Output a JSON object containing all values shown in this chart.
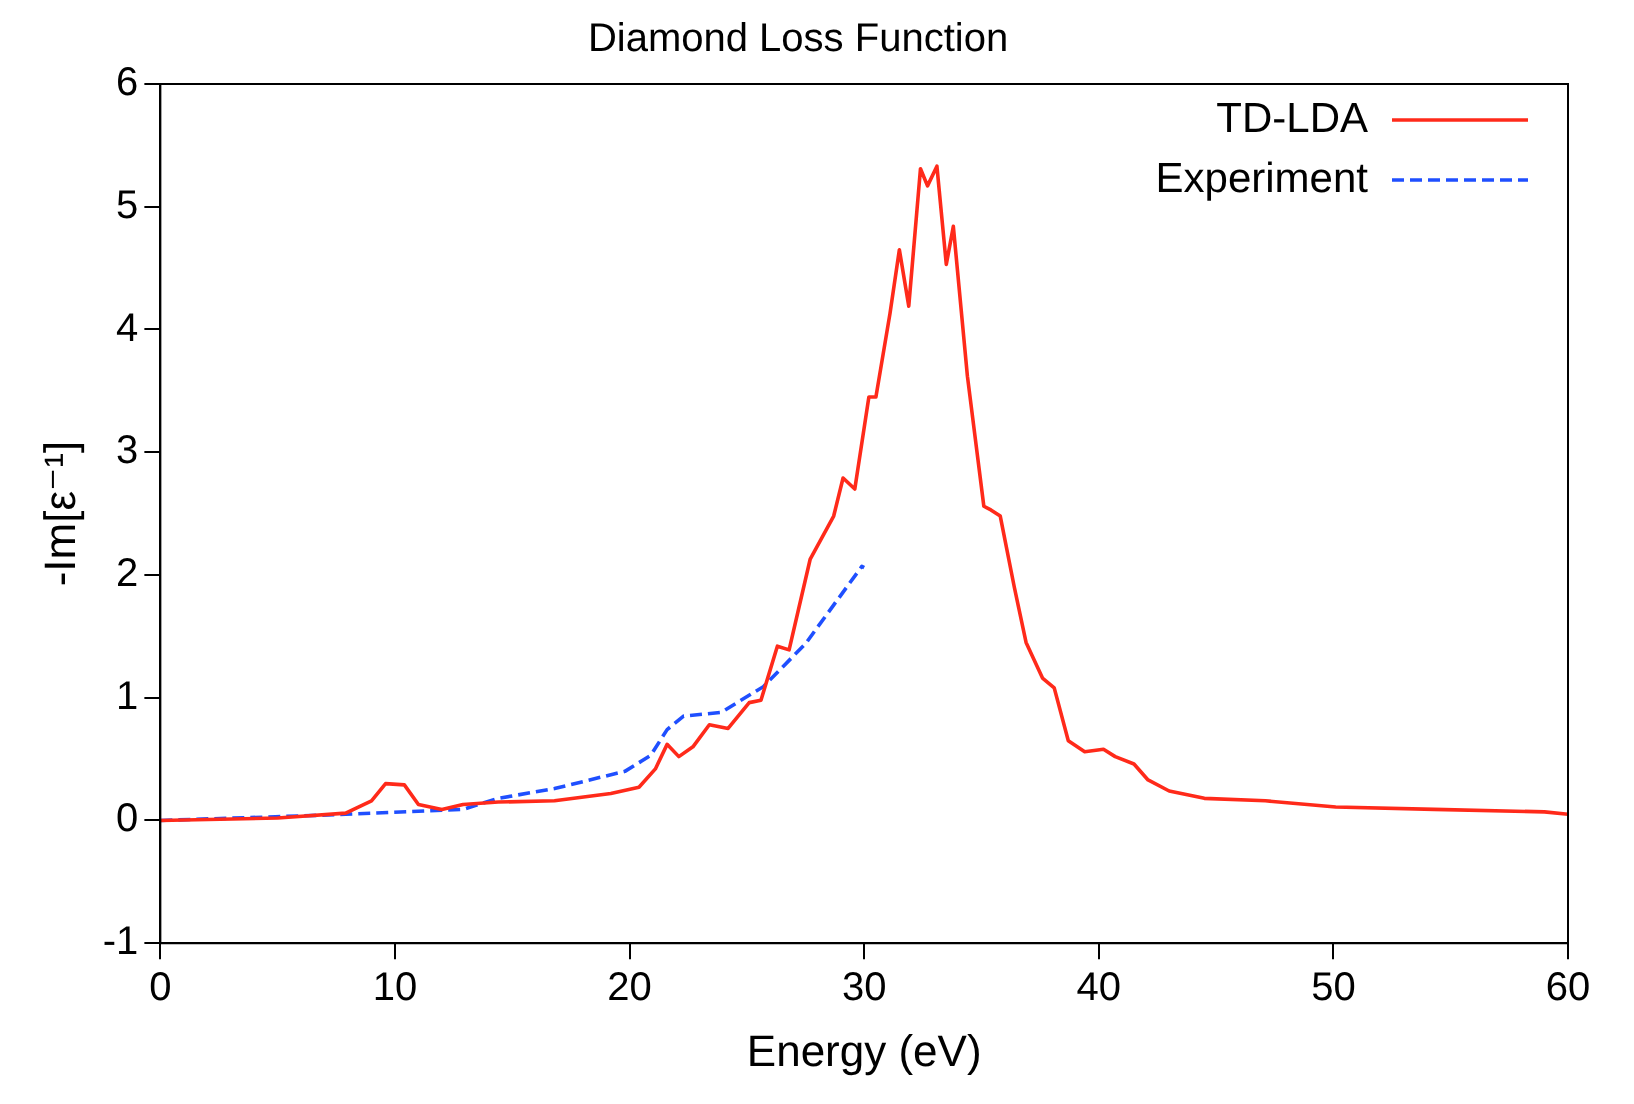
{
  "chart_data": {
    "type": "line",
    "title": "Diamond Loss Function",
    "xlabel": "Energy (eV)",
    "ylabel": "-Im[ε⁻¹]",
    "xlim": [
      0,
      60
    ],
    "xticks": [
      0,
      10,
      20,
      30,
      40,
      50,
      60
    ],
    "ylim": [
      -1,
      6
    ],
    "yticks": [
      -1,
      0,
      1,
      2,
      3,
      4,
      5,
      6
    ],
    "grid": false,
    "legend": "top right",
    "marker": "none",
    "series": [
      {
        "name": "TD-LDA",
        "color": "#ff2a1a",
        "line_style": "solid",
        "x": [
          0,
          5,
          7.9,
          9.0,
          9.6,
          10.4,
          11.0,
          12.0,
          12.9,
          14.4,
          16.8,
          19.2,
          20.4,
          21.1,
          21.6,
          22.1,
          22.7,
          23.4,
          24.2,
          25.1,
          25.6,
          26.3,
          26.8,
          27.7,
          28.7,
          29.1,
          29.6,
          30.2,
          30.5,
          31.1,
          31.5,
          31.9,
          32.4,
          32.7,
          33.1,
          33.5,
          33.8,
          34.4,
          35.1,
          35.4,
          35.8,
          36.4,
          36.9,
          37.6,
          38.1,
          38.7,
          39.4,
          40.2,
          40.7,
          41.5,
          42.1,
          43.0,
          44.5,
          47.1,
          50.1,
          54.3,
          59.0,
          60
        ],
        "values": [
          0,
          0.02,
          0.06,
          0.16,
          0.3,
          0.29,
          0.13,
          0.09,
          0.13,
          0.15,
          0.16,
          0.22,
          0.27,
          0.42,
          0.62,
          0.52,
          0.6,
          0.78,
          0.75,
          0.96,
          0.98,
          1.42,
          1.39,
          2.13,
          2.48,
          2.79,
          2.7,
          3.45,
          3.45,
          4.13,
          4.65,
          4.19,
          5.31,
          5.17,
          5.33,
          4.53,
          4.84,
          3.62,
          2.56,
          2.53,
          2.48,
          1.9,
          1.45,
          1.16,
          1.08,
          0.65,
          0.56,
          0.58,
          0.52,
          0.46,
          0.33,
          0.24,
          0.18,
          0.16,
          0.11,
          0.09,
          0.07,
          0.05
        ]
      },
      {
        "name": "Experiment",
        "color": "#1f4fff",
        "line_style": "dashed",
        "x": [
          0,
          4.9,
          7.9,
          12.9,
          14.4,
          16.8,
          19.8,
          20.9,
          21.6,
          22.3,
          23.9,
          25.7,
          27.5,
          29.9,
          30.0
        ],
        "values": [
          0,
          0.03,
          0.05,
          0.09,
          0.18,
          0.26,
          0.4,
          0.53,
          0.74,
          0.85,
          0.88,
          1.09,
          1.44,
          2.07,
          2.06
        ]
      }
    ]
  }
}
